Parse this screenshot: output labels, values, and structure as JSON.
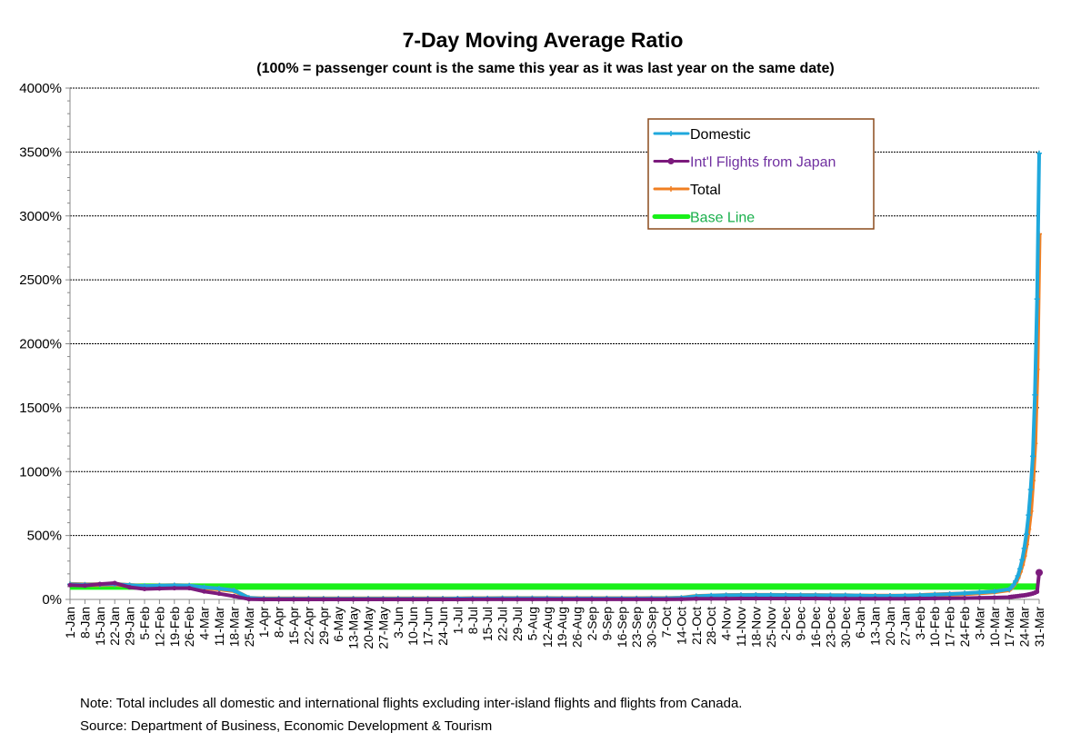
{
  "chart_data": {
    "type": "line",
    "title": "7-Day Moving Average Ratio",
    "subtitle": "(100% = passenger count  is the same this year as it was last year on the same date)",
    "xlabel": "",
    "ylabel": "",
    "ylim": [
      0,
      4000
    ],
    "y_ticks": [
      "0%",
      "500%",
      "1000%",
      "1500%",
      "2000%",
      "2500%",
      "3000%",
      "3500%",
      "4000%"
    ],
    "y_tick_values": [
      0,
      500,
      1000,
      1500,
      2000,
      2500,
      3000,
      3500,
      4000
    ],
    "grid": "horizontal dashed",
    "x_unit": "days since 1-Jan",
    "xlim": [
      0,
      455
    ],
    "x_ticks": [
      "1-Jan",
      "8-Jan",
      "15-Jan",
      "22-Jan",
      "29-Jan",
      "5-Feb",
      "12-Feb",
      "19-Feb",
      "26-Feb",
      "4-Mar",
      "11-Mar",
      "18-Mar",
      "25-Mar",
      "1-Apr",
      "8-Apr",
      "15-Apr",
      "22-Apr",
      "29-Apr",
      "6-May",
      "13-May",
      "20-May",
      "27-May",
      "3-Jun",
      "10-Jun",
      "17-Jun",
      "24-Jun",
      "1-Jul",
      "8-Jul",
      "15-Jul",
      "22-Jul",
      "29-Jul",
      "5-Aug",
      "12-Aug",
      "19-Aug",
      "26-Aug",
      "2-Sep",
      "9-Sep",
      "16-Sep",
      "23-Sep",
      "30-Sep",
      "7-Oct",
      "14-Oct",
      "21-Oct",
      "28-Oct",
      "4-Nov",
      "11-Nov",
      "18-Nov",
      "25-Nov",
      "2-Dec",
      "9-Dec",
      "16-Dec",
      "23-Dec",
      "30-Dec",
      "6-Jan",
      "13-Jan",
      "20-Jan",
      "27-Jan",
      "3-Feb",
      "10-Feb",
      "17-Feb",
      "24-Feb",
      "3-Mar",
      "10-Mar",
      "17-Mar",
      "24-Mar",
      "31-Mar"
    ],
    "legend_position": "top-right",
    "x": [
      0,
      7,
      14,
      21,
      28,
      35,
      42,
      49,
      56,
      63,
      70,
      77,
      84,
      91,
      98,
      105,
      112,
      119,
      126,
      133,
      140,
      147,
      154,
      161,
      168,
      175,
      182,
      189,
      196,
      203,
      210,
      217,
      224,
      231,
      238,
      245,
      252,
      259,
      266,
      273,
      280,
      287,
      294,
      301,
      308,
      315,
      322,
      329,
      336,
      343,
      350,
      357,
      364,
      371,
      378,
      385,
      392,
      399,
      406,
      413,
      420,
      427,
      434,
      441,
      442,
      443,
      444,
      445,
      446,
      447,
      448,
      449,
      450,
      451,
      452,
      453,
      454,
      455
    ],
    "series": [
      {
        "name": "Domestic",
        "color": "#1fa8dc",
        "marker": "cross",
        "values": [
          118,
          115,
          117,
          120,
          112,
          105,
          108,
          110,
          108,
          95,
          85,
          70,
          12,
          6,
          5,
          5,
          5,
          5,
          5,
          5,
          5,
          5,
          6,
          6,
          6,
          6,
          7,
          8,
          8,
          9,
          9,
          9,
          9,
          8,
          8,
          8,
          8,
          8,
          8,
          9,
          9,
          12,
          25,
          30,
          33,
          34,
          35,
          35,
          34,
          33,
          33,
          32,
          32,
          30,
          28,
          28,
          30,
          33,
          38,
          42,
          48,
          55,
          62,
          80,
          95,
          115,
          145,
          185,
          240,
          310,
          400,
          510,
          660,
          860,
          1120,
          1600,
          2350,
          3490
        ]
      },
      {
        "name": "Int'l Flights from Japan",
        "color": "#7b1a7c",
        "marker": "circle",
        "values": [
          112,
          108,
          120,
          128,
          95,
          82,
          85,
          88,
          88,
          62,
          45,
          25,
          2,
          0,
          0,
          0,
          0,
          0,
          0,
          0,
          0,
          0,
          0,
          0,
          0,
          0,
          0,
          1,
          1,
          1,
          1,
          1,
          1,
          1,
          1,
          1,
          1,
          1,
          1,
          1,
          1,
          2,
          5,
          6,
          6,
          7,
          7,
          7,
          7,
          7,
          7,
          6,
          6,
          6,
          6,
          6,
          6,
          7,
          8,
          9,
          10,
          12,
          14,
          18,
          20,
          22,
          24,
          26,
          28,
          30,
          32,
          35,
          38,
          42,
          46,
          52,
          60,
          210
        ]
      },
      {
        "name": "Total",
        "color": "#f07f22",
        "marker": "cross",
        "values": [
          118,
          115,
          116,
          118,
          110,
          102,
          106,
          108,
          106,
          90,
          82,
          68,
          10,
          5,
          5,
          5,
          5,
          5,
          5,
          5,
          5,
          5,
          5,
          5,
          5,
          5,
          6,
          7,
          7,
          8,
          8,
          8,
          8,
          7,
          7,
          7,
          7,
          7,
          7,
          8,
          8,
          11,
          24,
          28,
          31,
          32,
          33,
          33,
          32,
          31,
          31,
          30,
          30,
          28,
          27,
          27,
          28,
          31,
          36,
          40,
          45,
          52,
          60,
          75,
          90,
          110,
          135,
          170,
          215,
          270,
          340,
          430,
          550,
          690,
          930,
          1220,
          1800,
          2860
        ]
      },
      {
        "name": "Base Line",
        "color": "#19f019",
        "marker": "none",
        "values": [
          100,
          100,
          100,
          100,
          100,
          100,
          100,
          100,
          100,
          100,
          100,
          100,
          100,
          100,
          100,
          100,
          100,
          100,
          100,
          100,
          100,
          100,
          100,
          100,
          100,
          100,
          100,
          100,
          100,
          100,
          100,
          100,
          100,
          100,
          100,
          100,
          100,
          100,
          100,
          100,
          100,
          100,
          100,
          100,
          100,
          100,
          100,
          100,
          100,
          100,
          100,
          100,
          100,
          100,
          100,
          100,
          100,
          100,
          100,
          100,
          100,
          100,
          100,
          100,
          100,
          100,
          100,
          100,
          100,
          100,
          100,
          100,
          100,
          100,
          100,
          100,
          100,
          100
        ]
      }
    ],
    "legend_label_colors": [
      "#000000",
      "#7030a0",
      "#000000",
      "#1ab04c"
    ]
  },
  "notes": {
    "note": "Note: Total includes all domestic and international flights excluding inter-island flights and flights from Canada.",
    "source": "Source: Department of Business, Economic Development & Tourism"
  }
}
